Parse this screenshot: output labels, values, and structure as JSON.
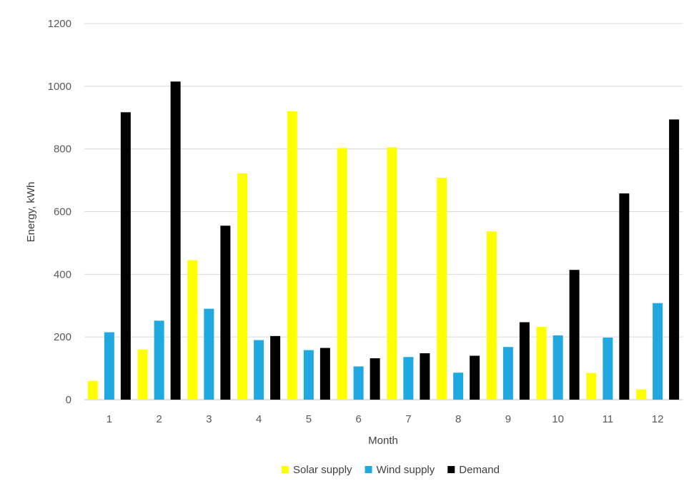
{
  "chart_data": {
    "type": "bar",
    "title": "",
    "xlabel": "Month",
    "ylabel": "Energy, kWh",
    "ylim": [
      0,
      1200
    ],
    "yticks": [
      0,
      200,
      400,
      600,
      800,
      1000,
      1200
    ],
    "grid": true,
    "legend_position": "bottom",
    "categories": [
      "1",
      "2",
      "3",
      "4",
      "5",
      "6",
      "7",
      "8",
      "9",
      "10",
      "11",
      "12"
    ],
    "series": [
      {
        "name": "Solar supply",
        "color": "#ffff00",
        "values": [
          60,
          160,
          445,
          722,
          920,
          803,
          805,
          708,
          537,
          232,
          85,
          33
        ]
      },
      {
        "name": "Wind supply",
        "color": "#1fa9e0",
        "values": [
          215,
          252,
          290,
          190,
          158,
          106,
          136,
          86,
          168,
          205,
          198,
          308
        ]
      },
      {
        "name": "Demand",
        "color": "#000000",
        "values": [
          917,
          1015,
          555,
          203,
          165,
          132,
          148,
          140,
          247,
          414,
          658,
          894
        ]
      }
    ]
  }
}
